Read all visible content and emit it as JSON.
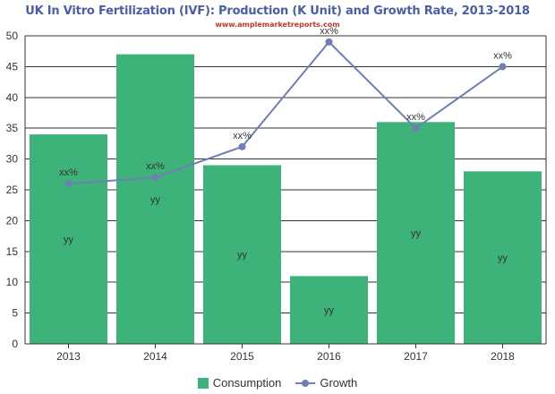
{
  "title": "UK In Vitro Fertilization (IVF): Production (K Unit) and Growth Rate, 2013-2018",
  "subtitle": "www.amplemarketreports.com",
  "colors": {
    "bar": "#3db37a",
    "line": "#6f7fb4",
    "grid": "#333333",
    "axis_text": "#333333"
  },
  "legend": {
    "bar_label": "Consumption",
    "line_label": "Growth"
  },
  "chart_data": {
    "type": "bar",
    "categories": [
      "2013",
      "2014",
      "2015",
      "2016",
      "2017",
      "2018"
    ],
    "series": [
      {
        "name": "Consumption",
        "type": "bar",
        "values": [
          34,
          47,
          29,
          11,
          36,
          28
        ],
        "labels": [
          "yy",
          "yy",
          "yy",
          "yy",
          "yy",
          "yy"
        ]
      },
      {
        "name": "Growth",
        "type": "line",
        "values": [
          26,
          27,
          32,
          49,
          35,
          45
        ],
        "labels": [
          "xx%",
          "xx%",
          "xx%",
          "xx%",
          "xx%",
          "xx%"
        ]
      }
    ],
    "ylim": [
      0,
      50
    ],
    "yticks": [
      0,
      5,
      10,
      15,
      20,
      25,
      30,
      35,
      40,
      45,
      50
    ],
    "grid": true,
    "legend_position": "bottom"
  }
}
